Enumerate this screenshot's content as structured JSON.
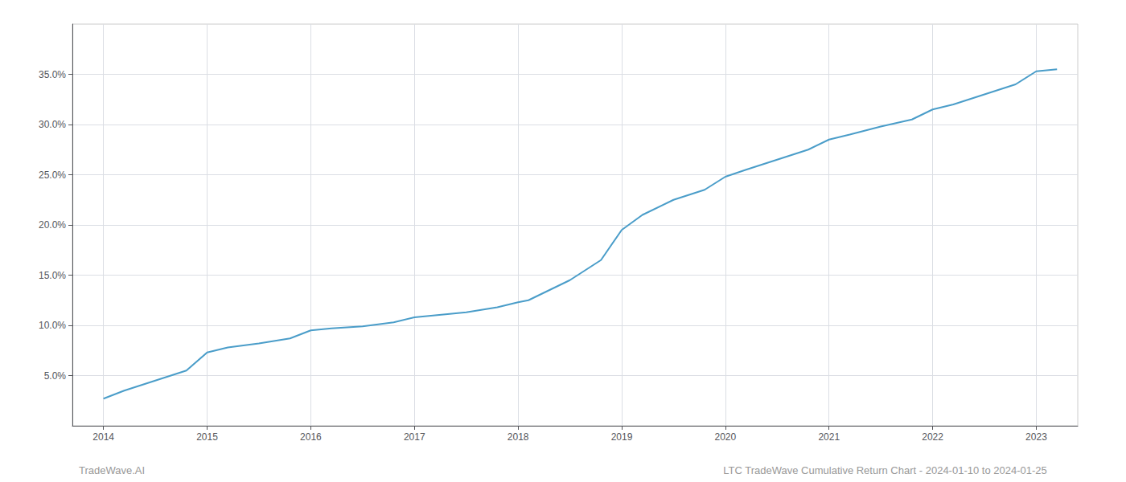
{
  "chart_data": {
    "type": "line",
    "x": [
      2014.0,
      2014.2,
      2014.5,
      2014.8,
      2015.0,
      2015.2,
      2015.5,
      2015.8,
      2016.0,
      2016.2,
      2016.5,
      2016.8,
      2017.0,
      2017.2,
      2017.5,
      2017.8,
      2018.0,
      2018.1,
      2018.2,
      2018.5,
      2018.8,
      2019.0,
      2019.2,
      2019.5,
      2019.8,
      2020.0,
      2020.2,
      2020.5,
      2020.8,
      2021.0,
      2021.2,
      2021.5,
      2021.8,
      2022.0,
      2022.2,
      2022.5,
      2022.8,
      2023.0,
      2023.2
    ],
    "values": [
      2.7,
      3.5,
      4.5,
      5.5,
      7.3,
      7.8,
      8.2,
      8.7,
      9.5,
      9.7,
      9.9,
      10.3,
      10.8,
      11.0,
      11.3,
      11.8,
      12.3,
      12.5,
      13.0,
      14.5,
      16.5,
      19.5,
      21.0,
      22.5,
      23.5,
      24.8,
      25.5,
      26.5,
      27.5,
      28.5,
      29.0,
      29.8,
      30.5,
      31.5,
      32.0,
      33.0,
      34.0,
      35.3,
      35.5
    ],
    "color": "#4a9dc9",
    "xlim": [
      2013.7,
      2023.4
    ],
    "xticks": [
      2014,
      2015,
      2016,
      2017,
      2018,
      2019,
      2020,
      2021,
      2022,
      2023
    ],
    "ylim": [
      0,
      40
    ],
    "yticks": [
      {
        "value": 5.0,
        "label": "5.0%"
      },
      {
        "value": 10.0,
        "label": "10.0%"
      },
      {
        "value": 15.0,
        "label": "15.0%"
      },
      {
        "value": 20.0,
        "label": "20.0%"
      },
      {
        "value": 25.0,
        "label": "25.0%"
      },
      {
        "value": 30.0,
        "label": "30.0%"
      },
      {
        "value": 35.0,
        "label": "35.0%"
      }
    ],
    "grid": true,
    "annotations": [
      "TradeWave.AI",
      "LTC TradeWave Cumulative Return Chart - 2024-01-10 to 2024-01-25"
    ]
  }
}
